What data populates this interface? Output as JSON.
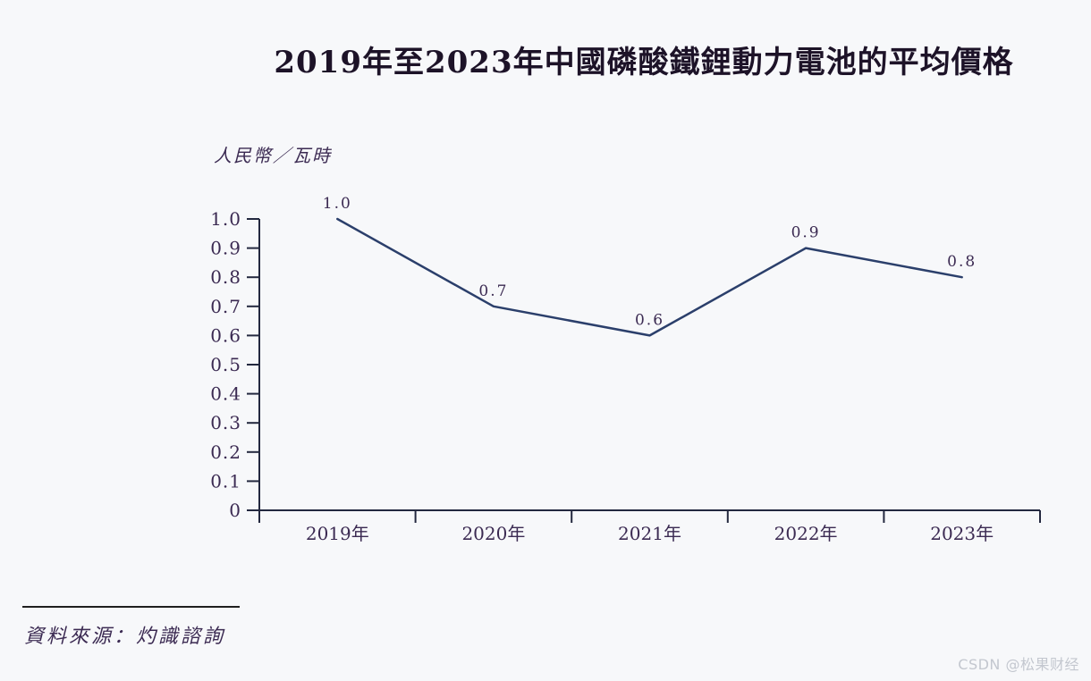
{
  "chart_data": {
    "type": "line",
    "title": "2019年至2023年中國磷酸鐵鋰動力電池的平均價格",
    "xlabel": "",
    "ylabel": "人民幣／瓦時",
    "categories": [
      "2019年",
      "2020年",
      "2021年",
      "2022年",
      "2023年"
    ],
    "values": [
      1.0,
      0.7,
      0.6,
      0.9,
      0.8
    ],
    "point_labels": [
      "1.0",
      "0.7",
      "0.6",
      "0.9",
      "0.8"
    ],
    "ytick_labels": [
      "1.0",
      "0.9",
      "0.8",
      "0.7",
      "0.6",
      "0.5",
      "0.4",
      "0.3",
      "0.2",
      "0.1",
      "0"
    ],
    "ylim": [
      0,
      1.0
    ],
    "grid": false,
    "legend": "none"
  },
  "source": {
    "text": "資料來源：灼識諮詢"
  },
  "page": {
    "watermark": "CSDN @松果财经"
  },
  "colors": {
    "line": "#2b3f6b",
    "axis": "#23283f",
    "text": "#3b2a52",
    "title": "#1d1328",
    "watermark": "#c3c7cf",
    "bg": "#f7f8fa",
    "rule": "#1f1f1f"
  }
}
